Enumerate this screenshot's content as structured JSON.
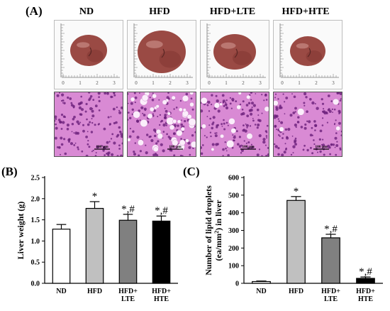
{
  "panel_a": {
    "label": "(A)",
    "groups": [
      "ND",
      "HFD",
      "HFD+LTE",
      "HFD+HTE"
    ],
    "ruler_ticks": [
      "0",
      "1",
      "2",
      "3"
    ],
    "scale_bar": "100 μm",
    "colors": {
      "liver": "#9a4a44",
      "liver_highlight": "#c88a84",
      "stain_bg": "#d98ad4",
      "stain_nuclei": "#6a1f7a",
      "droplet": "#fbeefb"
    }
  },
  "panel_b": {
    "label": "(B)"
  },
  "panel_c": {
    "label": "(C)"
  },
  "chart_data": [
    {
      "type": "bar",
      "ylabel": "Liver weight (g)",
      "categories": [
        "ND",
        "HFD",
        "HFD+\nLTE",
        "HFD+\nHTE"
      ],
      "values": [
        1.28,
        1.77,
        1.49,
        1.47
      ],
      "errors": [
        0.11,
        0.16,
        0.14,
        0.12
      ],
      "annotations": [
        "",
        "*",
        "*,#",
        "*,#"
      ],
      "ylim": [
        0,
        2.5
      ],
      "yticks": [
        "0.0",
        "0.5",
        "1.0",
        "1.5",
        "2.0",
        "2.5"
      ],
      "bar_colors": [
        "#ffffff",
        "#c0c0c0",
        "#808080",
        "#000000"
      ]
    },
    {
      "type": "bar",
      "ylabel": "Number of lipid droplets (ea/mm²) in liver",
      "categories": [
        "ND",
        "HFD",
        "HFD+\nLTE",
        "HFD+\nHTE"
      ],
      "values": [
        10,
        470,
        258,
        28
      ],
      "errors": [
        3,
        22,
        20,
        8
      ],
      "annotations": [
        "",
        "*",
        "*,#",
        "*,#"
      ],
      "ylim": [
        0,
        600
      ],
      "yticks": [
        "0",
        "100",
        "200",
        "300",
        "400",
        "500",
        "600"
      ],
      "bar_colors": [
        "#ffffff",
        "#c0c0c0",
        "#808080",
        "#000000"
      ]
    }
  ]
}
